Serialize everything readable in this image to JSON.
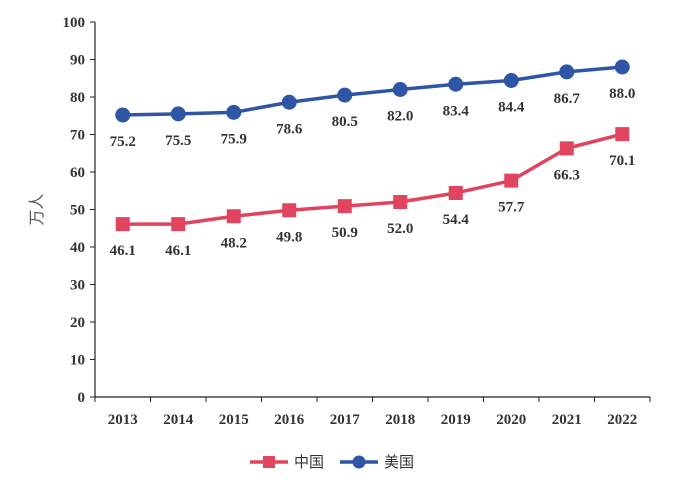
{
  "chart_data": {
    "type": "line",
    "title": "",
    "ylabel": "万人",
    "xlabel": "",
    "ylim": [
      0,
      100
    ],
    "yticks": [
      0,
      10,
      20,
      30,
      40,
      50,
      60,
      70,
      80,
      90,
      100
    ],
    "categories": [
      "2013",
      "2014",
      "2015",
      "2016",
      "2017",
      "2018",
      "2019",
      "2020",
      "2021",
      "2022"
    ],
    "grid": false,
    "legend_position": "bottom",
    "series": [
      {
        "name": "中国",
        "color": "#E0445E",
        "marker": "square",
        "values": [
          46.1,
          46.1,
          48.2,
          49.8,
          50.9,
          52.0,
          54.4,
          57.7,
          66.3,
          70.1
        ],
        "labels": [
          "46.1",
          "46.1",
          "48.2",
          "49.8",
          "50.9",
          "52.0",
          "54.4",
          "57.7",
          "66.3",
          "70.1"
        ]
      },
      {
        "name": "美国",
        "color": "#2F56A6",
        "marker": "circle",
        "values": [
          75.2,
          75.5,
          75.9,
          78.6,
          80.5,
          82.0,
          83.4,
          84.4,
          86.7,
          88.0
        ],
        "labels": [
          "75.2",
          "75.5",
          "75.9",
          "78.6",
          "80.5",
          "82.0",
          "83.4",
          "84.4",
          "86.7",
          "88.0"
        ]
      }
    ]
  }
}
